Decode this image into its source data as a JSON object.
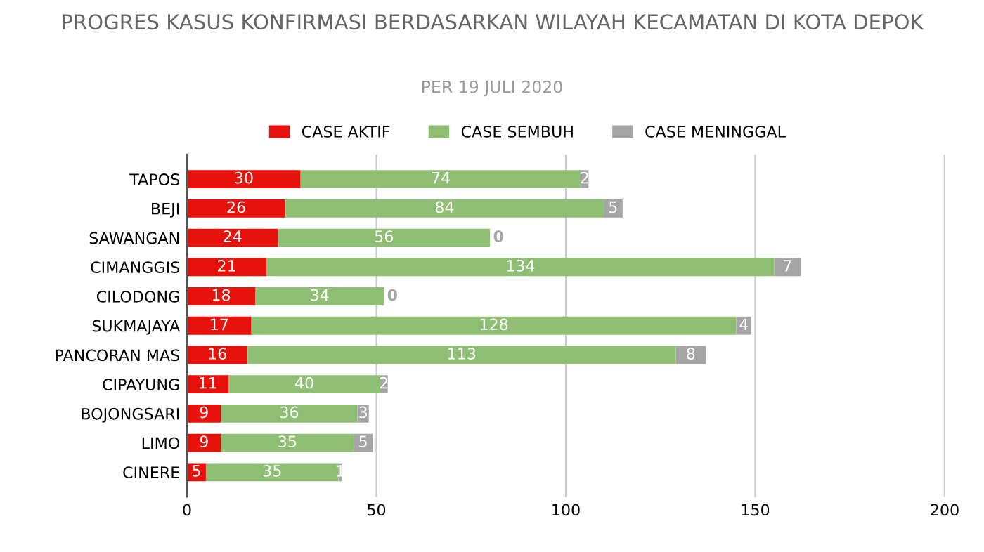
{
  "chart_data": {
    "type": "bar",
    "orientation": "horizontal",
    "stacked": true,
    "title": "PROGRES KASUS KONFIRMASI BERDASARKAN WILAYAH KECAMATAN DI KOTA DEPOK",
    "subtitle": "PER 19 JULI 2020",
    "categories": [
      "TAPOS",
      "BEJI",
      "SAWANGAN",
      "CIMANGGIS",
      "CILODONG",
      "SUKMAJAYA",
      "PANCORAN MAS",
      "CIPAYUNG",
      "BOJONGSARI",
      "LIMO",
      "CINERE"
    ],
    "series": [
      {
        "name": "CASE AKTIF",
        "color": "#e8120c",
        "values": [
          30,
          26,
          24,
          21,
          18,
          17,
          16,
          11,
          9,
          9,
          5
        ]
      },
      {
        "name": "CASE SEMBUH",
        "color": "#8fbf74",
        "values": [
          74,
          84,
          56,
          134,
          34,
          128,
          113,
          40,
          36,
          35,
          35
        ]
      },
      {
        "name": "CASE MENINGGAL",
        "color": "#a5a5a5",
        "values": [
          2,
          5,
          0,
          7,
          0,
          4,
          8,
          2,
          3,
          5,
          1
        ]
      }
    ],
    "xlim": [
      0,
      200
    ],
    "xticks": [
      0,
      50,
      100,
      150,
      200
    ],
    "grid": "x",
    "legend": "top",
    "data_labels": true
  }
}
